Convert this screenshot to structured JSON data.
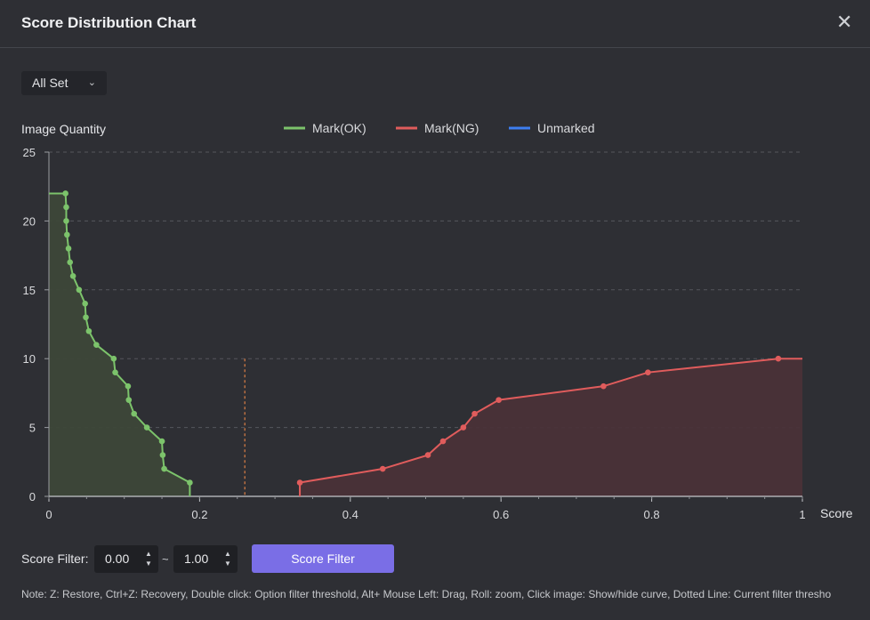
{
  "dialog": {
    "title": "Score Distribution Chart",
    "close_icon": "close-icon"
  },
  "set_selector": {
    "value": "All Set",
    "icon": "chevron-down-icon"
  },
  "filter": {
    "label": "Score Filter:",
    "min_value": "0.00",
    "separator": "~",
    "max_value": "1.00",
    "button_label": "Score Filter"
  },
  "note": "Note: Z: Restore, Ctrl+Z: Recovery, Double click: Option filter threshold, Alt+ Mouse Left: Drag, Roll: zoom, Click image: Show/hide curve, Dotted Line: Current filter thresho",
  "chart_data": {
    "type": "line",
    "ylabel": "Image Quantity",
    "xlabel": "Score",
    "xlim": [
      0,
      1
    ],
    "ylim": [
      0,
      25
    ],
    "x_ticks": [
      "0",
      "0.2",
      "0.4",
      "0.6",
      "0.8",
      "1"
    ],
    "y_ticks": [
      "0",
      "5",
      "10",
      "15",
      "20",
      "25"
    ],
    "grid": "horizontal dashed",
    "legend_position": "top-center",
    "threshold_line_x": 0.26,
    "series": [
      {
        "name": "Mark(OK)",
        "color": "#7cc36b",
        "fill": "#3d4739",
        "points": [
          [
            0.0,
            22
          ],
          [
            0.022,
            22
          ],
          [
            0.023,
            21
          ],
          [
            0.023,
            20
          ],
          [
            0.024,
            19
          ],
          [
            0.026,
            18
          ],
          [
            0.028,
            17
          ],
          [
            0.032,
            16
          ],
          [
            0.04,
            15
          ],
          [
            0.048,
            14
          ],
          [
            0.049,
            13
          ],
          [
            0.053,
            12
          ],
          [
            0.063,
            11
          ],
          [
            0.086,
            10
          ],
          [
            0.088,
            9
          ],
          [
            0.105,
            8
          ],
          [
            0.106,
            7
          ],
          [
            0.113,
            6
          ],
          [
            0.13,
            5
          ],
          [
            0.15,
            4
          ],
          [
            0.151,
            3
          ],
          [
            0.153,
            2
          ],
          [
            0.187,
            1
          ],
          [
            0.187,
            0
          ]
        ],
        "markers_from_index": 1
      },
      {
        "name": "Mark(NG)",
        "color": "#e05c5c",
        "fill": "#4a3138",
        "points": [
          [
            0.333,
            0
          ],
          [
            0.333,
            1
          ],
          [
            0.443,
            2
          ],
          [
            0.503,
            3
          ],
          [
            0.523,
            4
          ],
          [
            0.55,
            5
          ],
          [
            0.565,
            6
          ],
          [
            0.597,
            7
          ],
          [
            0.736,
            8
          ],
          [
            0.795,
            9
          ],
          [
            0.968,
            10
          ],
          [
            1.0,
            10
          ]
        ],
        "markers_from_index": 1
      },
      {
        "name": "Unmarked",
        "color": "#3d7ef0",
        "points": []
      }
    ]
  }
}
